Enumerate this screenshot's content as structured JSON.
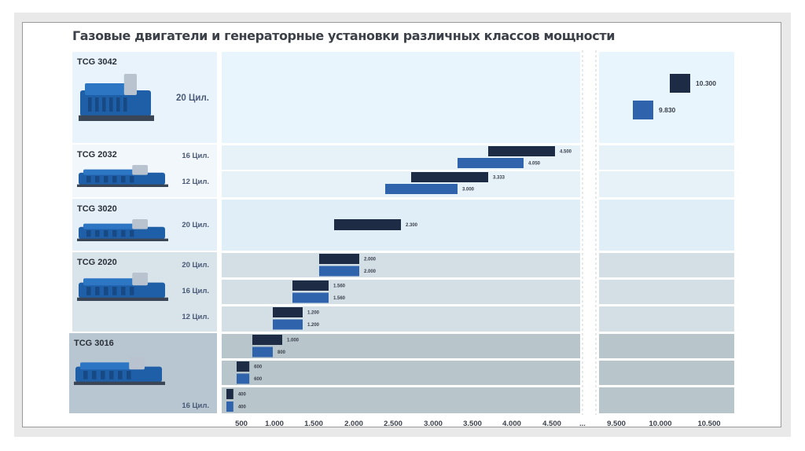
{
  "title": "Газовые двигатели и генераторные установки различных классов мощности",
  "colors": {
    "electric": "#1e2b45",
    "thermal": "#2f64ad"
  },
  "chart_data": {
    "type": "bar",
    "orientation": "horizontal",
    "title": "Газовые двигатели и генераторные установки различных классов мощности",
    "x_ticks": [
      "500",
      "1.000",
      "1.500",
      "2.000",
      "2.500",
      "3.000",
      "3.500",
      "4.000",
      "4.500",
      "...",
      "9.500",
      "10.000",
      "10.500"
    ],
    "axis_break": "between 4.500 and 9.500",
    "xlim_left": [
      350,
      4850
    ],
    "xlim_right": [
      9200,
      10800
    ],
    "groups": [
      {
        "model": "TCG 3042",
        "image": "generator-set",
        "rows": [
          {
            "cylinders": "20 Цил.",
            "values": [
              10300,
              9830
            ],
            "labels": [
              "10.300",
              "9.830"
            ]
          }
        ]
      },
      {
        "model": "TCG 2032",
        "image": "generator-set",
        "rows": [
          {
            "cylinders": "16 Цил.",
            "values": [
              4500,
              4050
            ],
            "labels": [
              "4.500",
              "4.050"
            ]
          },
          {
            "cylinders": "12 Цил.",
            "values": [
              3333,
              3000
            ],
            "labels": [
              "3.333",
              "3.000"
            ]
          }
        ]
      },
      {
        "model": "TCG 3020",
        "image": "generator-set",
        "rows": [
          {
            "cylinders": "20 Цил.",
            "values": [
              2300
            ],
            "labels": [
              "2.300"
            ]
          }
        ]
      },
      {
        "model": "TCG 2020",
        "image": "generator-set",
        "rows": [
          {
            "cylinders": "20 Цил.",
            "values": [
              2000,
              2000
            ],
            "labels": [
              "2.000",
              "2.000"
            ]
          },
          {
            "cylinders": "16 Цил.",
            "values": [
              1560,
              1560
            ],
            "labels": [
              "1.560",
              "1.560"
            ]
          },
          {
            "cylinders": "12 Цил.",
            "values": [
              1200,
              1200
            ],
            "labels": [
              "1.200",
              "1.200"
            ]
          }
        ]
      },
      {
        "model": "TCG 3016",
        "image": "generator-set",
        "rows": [
          {
            "cylinders": "",
            "values": [
              1000,
              800
            ],
            "labels": [
              "1.000",
              "800"
            ]
          },
          {
            "cylinders": "",
            "values": [
              600,
              600
            ],
            "labels": [
              "600",
              "600"
            ]
          },
          {
            "cylinders": "16 Цил.",
            "values": [
              400,
              400
            ],
            "labels": [
              "400",
              "400"
            ]
          }
        ]
      }
    ]
  }
}
